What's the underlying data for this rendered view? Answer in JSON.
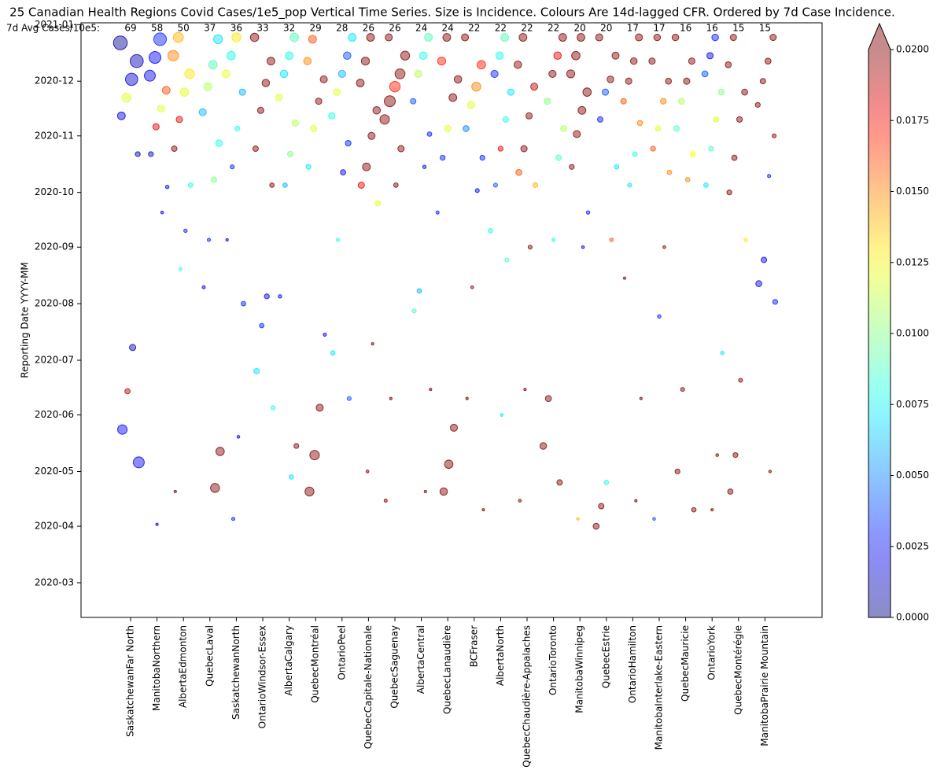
{
  "chart_data": {
    "type": "scatter",
    "title": "25 Canadian Health Regions Covid Cases/1e5_pop  Vertical Time Series. Size is Incidence. Colours Are 14d-lagged CFR. Ordered by 7d Case Incidence.",
    "y_label": "Reporting Date YYYY-MM",
    "header_label": "7d Avg Cases/10e5:",
    "header_values": [
      69,
      58,
      50,
      37,
      36,
      33,
      32,
      29,
      28,
      26,
      26,
      24,
      24,
      22,
      22,
      22,
      22,
      20,
      20,
      17,
      17,
      16,
      16,
      15,
      15
    ],
    "categories": [
      "SaskatchewanFar North",
      "ManitobaNorthern",
      "AlbertaEdmonton",
      "QuebecLaval",
      "SaskatchewanNorth",
      "OntarioWindsor-Essex",
      "AlbertaCalgary",
      "QuebecMontréal",
      "OntarioPeel",
      "QuebecCapitale-Nationale",
      "QuebecSaguenay",
      "AlbertaCentral",
      "QuebecLanaudière",
      "BCFraser",
      "AlbertaNorth",
      "QuebecChaudière-Appalaches",
      "OntarioToronto",
      "ManitobaWinnipeg",
      "QuebecEstrie",
      "OntarioHamilton",
      "ManitobaInterlake-Eastern",
      "QuebecMauricie",
      "OntarioYork",
      "QuebecMontérégie",
      "ManitobaPrairie Mountain"
    ],
    "ylim": [
      "2020-02-11",
      "2021-01-02"
    ],
    "yticks": [
      "2020-03",
      "2020-04",
      "2020-05",
      "2020-06",
      "2020-07",
      "2020-08",
      "2020-09",
      "2020-10",
      "2020-11",
      "2020-12",
      "2021-01"
    ],
    "colormap": "jet",
    "clim": [
      0,
      0.02
    ],
    "cticks": [
      {
        "value": 0,
        "label": "0.0000"
      },
      {
        "value": 0.0025,
        "label": "0.0025"
      },
      {
        "value": 0.005,
        "label": "0.0050"
      },
      {
        "value": 0.0075,
        "label": "0.0075"
      },
      {
        "value": 0.01,
        "label": "0.0100"
      },
      {
        "value": 0.0125,
        "label": "0.0125"
      },
      {
        "value": 0.015,
        "label": "0.0150"
      },
      {
        "value": 0.0175,
        "label": "0.0175"
      },
      {
        "value": 0.02,
        "label": "0.0200"
      }
    ],
    "series": [
      {
        "dates": [
          "2020-12-22",
          "2020-12-12",
          "2020-12-02",
          "2020-11-22",
          "2020-11-12",
          "2020-10-22",
          "2020-07-08",
          "2020-06-14",
          "2020-05-24",
          "2020-05-06"
        ],
        "values": [
          95,
          85,
          75,
          40,
          30,
          12,
          20,
          14,
          45,
          60
        ],
        "cfr": [
          0.0005,
          0.001,
          0.0015,
          0.012,
          0.002,
          0.001,
          0.001,
          0.019,
          0.0025,
          0.002
        ]
      },
      {
        "dates": [
          "2020-12-24",
          "2020-12-14",
          "2020-12-04",
          "2020-11-26",
          "2020-11-16",
          "2020-11-06",
          "2020-10-22",
          "2020-10-04",
          "2020-09-20",
          "2020-04-02"
        ],
        "values": [
          80,
          70,
          60,
          30,
          25,
          20,
          12,
          6,
          4,
          3
        ],
        "cfr": [
          0.003,
          0.0025,
          0.002,
          0.016,
          0.012,
          0.018,
          0.0015,
          0.002,
          0.002,
          0.002
        ]
      },
      {
        "dates": [
          "2020-12-25",
          "2020-12-15",
          "2020-12-05",
          "2020-11-25",
          "2020-11-10",
          "2020-10-25",
          "2020-10-05",
          "2020-09-10",
          "2020-08-20",
          "2020-04-20"
        ],
        "values": [
          50,
          55,
          45,
          35,
          20,
          15,
          10,
          6,
          5,
          3
        ],
        "cfr": [
          0.014,
          0.015,
          0.013,
          0.012,
          0.018,
          0.02,
          0.008,
          0.003,
          0.008,
          0.02
        ]
      },
      {
        "dates": [
          "2020-12-24",
          "2020-12-10",
          "2020-11-28",
          "2020-11-14",
          "2020-10-28",
          "2020-10-08",
          "2020-09-05",
          "2020-08-10",
          "2020-05-12",
          "2020-04-22"
        ],
        "values": [
          40,
          35,
          30,
          25,
          22,
          15,
          5,
          5,
          35,
          40
        ],
        "cfr": [
          0.007,
          0.009,
          0.011,
          0.006,
          0.008,
          0.01,
          0.003,
          0.002,
          0.02,
          0.02
        ]
      },
      {
        "dates": [
          "2020-12-25",
          "2020-12-15",
          "2020-12-05",
          "2020-11-25",
          "2020-11-05",
          "2020-10-15",
          "2020-09-05",
          "2020-08-01",
          "2020-05-20",
          "2020-04-05"
        ],
        "values": [
          40,
          35,
          30,
          20,
          12,
          8,
          3,
          10,
          4,
          5
        ],
        "cfr": [
          0.013,
          0.008,
          0.012,
          0.006,
          0.008,
          0.003,
          0.002,
          0.003,
          0.002,
          0.003
        ]
      },
      {
        "dates": [
          "2020-12-25",
          "2020-12-12",
          "2020-11-30",
          "2020-11-15",
          "2020-10-25",
          "2020-10-05",
          "2020-08-05",
          "2020-07-20",
          "2020-06-25",
          "2020-06-05"
        ],
        "values": [
          35,
          30,
          28,
          20,
          15,
          10,
          12,
          10,
          15,
          8
        ],
        "cfr": [
          0.02,
          0.02,
          0.02,
          0.02,
          0.02,
          0.02,
          0.002,
          0.003,
          0.007,
          0.008
        ]
      },
      {
        "dates": [
          "2020-12-25",
          "2020-12-15",
          "2020-12-05",
          "2020-11-22",
          "2020-11-08",
          "2020-10-22",
          "2020-10-05",
          "2020-08-05",
          "2020-05-15",
          "2020-04-28"
        ],
        "values": [
          35,
          30,
          28,
          22,
          20,
          15,
          10,
          6,
          12,
          10
        ],
        "cfr": [
          0.009,
          0.008,
          0.007,
          0.012,
          0.011,
          0.01,
          0.006,
          0.002,
          0.02,
          0.007
        ]
      },
      {
        "dates": [
          "2020-12-24",
          "2020-12-12",
          "2020-12-02",
          "2020-11-20",
          "2020-11-05",
          "2020-10-15",
          "2020-07-15",
          "2020-06-05",
          "2020-05-10",
          "2020-04-20"
        ],
        "values": [
          30,
          28,
          25,
          20,
          18,
          12,
          5,
          25,
          45,
          40
        ],
        "cfr": [
          0.016,
          0.015,
          0.02,
          0.02,
          0.012,
          0.007,
          0.002,
          0.02,
          0.02,
          0.02
        ]
      },
      {
        "dates": [
          "2020-12-25",
          "2020-12-15",
          "2020-12-05",
          "2020-11-25",
          "2020-11-12",
          "2020-10-28",
          "2020-10-12",
          "2020-09-05",
          "2020-07-05",
          "2020-06-10"
        ],
        "values": [
          30,
          28,
          26,
          22,
          20,
          16,
          14,
          5,
          10,
          8
        ],
        "cfr": [
          0.007,
          0.004,
          0.006,
          0.012,
          0.008,
          0.003,
          0.002,
          0.008,
          0.007,
          0.004
        ]
      },
      {
        "dates": [
          "2020-12-25",
          "2020-12-12",
          "2020-11-30",
          "2020-11-15",
          "2020-11-01",
          "2020-10-15",
          "2020-10-05",
          "2020-09-25",
          "2020-07-10",
          "2020-05-01"
        ],
        "values": [
          30,
          32,
          30,
          28,
          25,
          30,
          20,
          15,
          3,
          4
        ],
        "cfr": [
          0.02,
          0.02,
          0.02,
          0.02,
          0.02,
          0.02,
          0.018,
          0.012,
          0.02,
          0.02
        ]
      },
      {
        "dates": [
          "2020-12-25",
          "2020-12-15",
          "2020-12-05",
          "2020-11-28",
          "2020-11-20",
          "2020-11-10",
          "2020-10-25",
          "2020-10-05",
          "2020-06-10",
          "2020-04-15"
        ],
        "values": [
          25,
          40,
          50,
          55,
          60,
          45,
          20,
          10,
          3,
          5
        ],
        "cfr": [
          0.02,
          0.02,
          0.02,
          0.017,
          0.02,
          0.02,
          0.02,
          0.02,
          0.02,
          0.02
        ]
      },
      {
        "dates": [
          "2020-12-25",
          "2020-12-15",
          "2020-12-05",
          "2020-11-20",
          "2020-11-02",
          "2020-10-15",
          "2020-08-08",
          "2020-07-28",
          "2020-06-15",
          "2020-04-20"
        ],
        "values": [
          30,
          28,
          25,
          15,
          10,
          6,
          10,
          8,
          3,
          3
        ],
        "cfr": [
          0.009,
          0.008,
          0.011,
          0.004,
          0.003,
          0.002,
          0.006,
          0.009,
          0.02,
          0.02
        ]
      },
      {
        "dates": [
          "2020-12-25",
          "2020-12-12",
          "2020-12-02",
          "2020-11-22",
          "2020-11-05",
          "2020-10-20",
          "2020-09-20",
          "2020-05-25",
          "2020-05-05",
          "2020-04-20"
        ],
        "values": [
          30,
          32,
          28,
          30,
          20,
          12,
          5,
          25,
          35,
          28
        ],
        "cfr": [
          0.02,
          0.017,
          0.02,
          0.02,
          0.012,
          0.003,
          0.003,
          0.02,
          0.02,
          0.02
        ]
      },
      {
        "dates": [
          "2020-12-25",
          "2020-12-10",
          "2020-11-28",
          "2020-11-18",
          "2020-11-05",
          "2020-10-20",
          "2020-10-02",
          "2020-08-10",
          "2020-06-10",
          "2020-04-10"
        ],
        "values": [
          25,
          35,
          40,
          25,
          18,
          12,
          8,
          4,
          3,
          3
        ],
        "cfr": [
          0.02,
          0.017,
          0.015,
          0.012,
          0.005,
          0.003,
          0.002,
          0.02,
          0.02,
          0.02
        ]
      },
      {
        "dates": [
          "2020-12-25",
          "2020-12-15",
          "2020-12-05",
          "2020-11-25",
          "2020-11-10",
          "2020-10-25",
          "2020-10-05",
          "2020-09-10",
          "2020-08-25",
          "2020-06-01"
        ],
        "values": [
          30,
          28,
          26,
          20,
          15,
          12,
          8,
          10,
          8,
          4
        ],
        "cfr": [
          0.009,
          0.008,
          0.003,
          0.007,
          0.008,
          0.018,
          0.004,
          0.008,
          0.009,
          0.007
        ]
      },
      {
        "dates": [
          "2020-12-25",
          "2020-12-10",
          "2020-11-28",
          "2020-11-12",
          "2020-10-25",
          "2020-10-12",
          "2020-10-05",
          "2020-09-01",
          "2020-06-15",
          "2020-04-15"
        ],
        "values": [
          30,
          28,
          25,
          20,
          20,
          18,
          12,
          8,
          3,
          4
        ],
        "cfr": [
          0.02,
          0.02,
          0.019,
          0.02,
          0.02,
          0.016,
          0.014,
          0.02,
          0.02,
          0.02
        ]
      },
      {
        "dates": [
          "2020-12-25",
          "2020-12-15",
          "2020-12-05",
          "2020-11-20",
          "2020-11-05",
          "2020-10-20",
          "2020-09-05",
          "2020-06-10",
          "2020-05-15",
          "2020-04-25"
        ],
        "values": [
          30,
          28,
          26,
          20,
          18,
          15,
          5,
          18,
          22,
          15
        ],
        "cfr": [
          0.02,
          0.018,
          0.02,
          0.01,
          0.011,
          0.009,
          0.008,
          0.02,
          0.02,
          0.02
        ]
      },
      {
        "dates": [
          "2020-12-25",
          "2020-12-15",
          "2020-12-05",
          "2020-11-25",
          "2020-11-15",
          "2020-11-02",
          "2020-10-15",
          "2020-09-20",
          "2020-09-01",
          "2020-04-05"
        ],
        "values": [
          30,
          35,
          32,
          35,
          30,
          25,
          12,
          6,
          4,
          3
        ],
        "cfr": [
          0.02,
          0.02,
          0.02,
          0.02,
          0.02,
          0.02,
          0.02,
          0.003,
          0.002,
          0.014
        ]
      },
      {
        "dates": [
          "2020-12-25",
          "2020-12-15",
          "2020-12-02",
          "2020-11-25",
          "2020-11-10",
          "2020-10-15",
          "2020-09-05",
          "2020-04-25",
          "2020-04-12",
          "2020-04-01"
        ],
        "values": [
          25,
          25,
          22,
          20,
          15,
          10,
          6,
          10,
          15,
          18
        ],
        "cfr": [
          0.02,
          0.02,
          0.02,
          0.004,
          0.003,
          0.007,
          0.016,
          0.008,
          0.02,
          0.02
        ]
      },
      {
        "dates": [
          "2020-12-25",
          "2020-12-12",
          "2020-12-01",
          "2020-11-20",
          "2020-11-08",
          "2020-10-22",
          "2020-10-05",
          "2020-08-15",
          "2020-06-10",
          "2020-04-15"
        ],
        "values": [
          25,
          22,
          20,
          15,
          14,
          10,
          8,
          3,
          3,
          3
        ],
        "cfr": [
          0.02,
          0.02,
          0.02,
          0.016,
          0.015,
          0.008,
          0.007,
          0.02,
          0.02,
          0.02
        ]
      },
      {
        "dates": [
          "2020-12-25",
          "2020-12-12",
          "2020-12-01",
          "2020-11-20",
          "2020-11-05",
          "2020-10-25",
          "2020-10-12",
          "2020-09-01",
          "2020-07-25",
          "2020-04-05"
        ],
        "values": [
          22,
          20,
          18,
          16,
          14,
          12,
          10,
          4,
          6,
          4
        ],
        "cfr": [
          0.02,
          0.02,
          0.02,
          0.015,
          0.012,
          0.016,
          0.015,
          0.02,
          0.003,
          0.004
        ]
      },
      {
        "dates": [
          "2020-12-25",
          "2020-12-12",
          "2020-12-01",
          "2020-11-20",
          "2020-11-05",
          "2020-10-22",
          "2020-10-08",
          "2020-06-15",
          "2020-05-01",
          "2020-04-10"
        ],
        "values": [
          22,
          20,
          20,
          18,
          16,
          14,
          10,
          8,
          12,
          10
        ],
        "cfr": [
          0.02,
          0.02,
          0.02,
          0.011,
          0.009,
          0.0125,
          0.015,
          0.02,
          0.02,
          0.02
        ]
      },
      {
        "dates": [
          "2020-12-25",
          "2020-12-15",
          "2020-12-05",
          "2020-11-25",
          "2020-11-10",
          "2020-10-25",
          "2020-10-05",
          "2020-07-05",
          "2020-05-10",
          "2020-04-10"
        ],
        "values": [
          22,
          20,
          18,
          16,
          15,
          12,
          10,
          6,
          4,
          3
        ],
        "cfr": [
          0.003,
          0.002,
          0.004,
          0.01,
          0.012,
          0.009,
          0.007,
          0.007,
          0.02,
          0.02
        ]
      },
      {
        "dates": [
          "2020-12-25",
          "2020-12-10",
          "2020-11-25",
          "2020-11-10",
          "2020-10-20",
          "2020-10-01",
          "2020-09-05",
          "2020-06-20",
          "2020-05-10",
          "2020-04-20"
        ],
        "values": [
          20,
          18,
          18,
          16,
          14,
          12,
          6,
          8,
          12,
          14
        ],
        "cfr": [
          0.02,
          0.02,
          0.02,
          0.02,
          0.02,
          0.02,
          0.013,
          0.02,
          0.02,
          0.02
        ]
      },
      {
        "dates": [
          "2020-12-25",
          "2020-12-12",
          "2020-12-01",
          "2020-11-18",
          "2020-11-01",
          "2020-10-10",
          "2020-08-25",
          "2020-08-12",
          "2020-08-02",
          "2020-05-01"
        ],
        "values": [
          20,
          18,
          15,
          12,
          8,
          5,
          15,
          18,
          12,
          3
        ],
        "cfr": [
          0.02,
          0.02,
          0.02,
          0.02,
          0.02,
          0.003,
          0.002,
          0.002,
          0.003,
          0.02
        ]
      }
    ]
  }
}
